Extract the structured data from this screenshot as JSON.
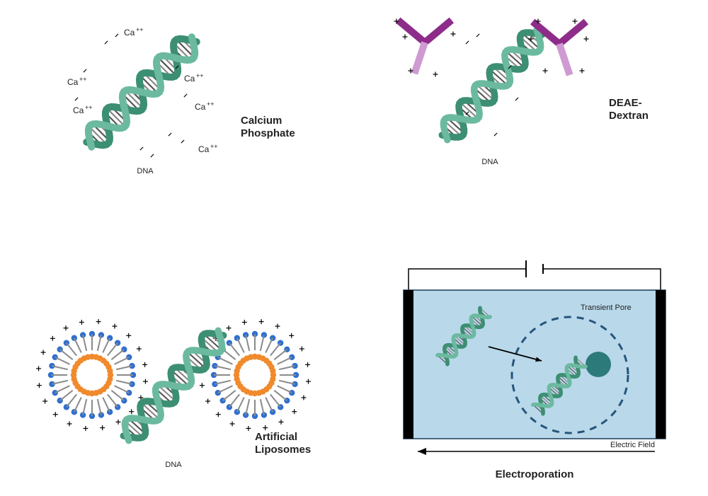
{
  "colors": {
    "bg": "#ffffff",
    "dnaStrand": "#6bbaa0",
    "dnaStrandDark": "#3c8f72",
    "dnaRung": "#555555",
    "dnaRungLight": "#888888",
    "dextranDark": "#8e2c8a",
    "dextranLight": "#cf9ad2",
    "lipoHeadOuter": "#2f6fd0",
    "lipoHeadInner": "#f08a2c",
    "lipoTail": "#8a8a8a",
    "cuvetteFill": "#b9d8ea",
    "cuvetteStroke": "#193a5a",
    "electrode": "#000000",
    "cell": "#2c7a7a",
    "poreDash": "#24557a",
    "black": "#000000"
  },
  "panels": {
    "calcium_phosphate": {
      "title1": "Calcium",
      "title2": "Phosphate",
      "dna": "DNA",
      "ion": "Ca",
      "ionSuper": "++",
      "minus": "-"
    },
    "deae_dextran": {
      "title1": "DEAE-",
      "title2": "Dextran",
      "dna": "DNA",
      "plus": "+"
    },
    "artificial_liposomes": {
      "title1": "Artificial",
      "title2": "Liposomes",
      "dna": "DNA",
      "plus": "+"
    },
    "electroporation": {
      "title": "Electroporation",
      "transient_pore": "Transient Pore",
      "electric_field": "Electric Field"
    }
  }
}
